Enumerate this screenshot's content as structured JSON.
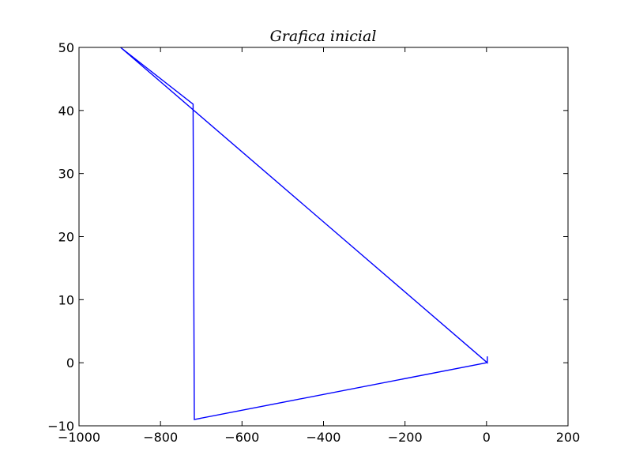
{
  "chart_data": {
    "type": "line",
    "title": "Grafica inicial",
    "xlabel": "",
    "ylabel": "",
    "xlim": [
      -1000,
      200
    ],
    "ylim": [
      -10,
      50
    ],
    "x_ticks": [
      -1000,
      -800,
      -600,
      -400,
      -200,
      0,
      200
    ],
    "x_tick_labels": [
      "−1000",
      "−800",
      "−600",
      "−400",
      "−200",
      "0",
      "200"
    ],
    "y_ticks": [
      -10,
      0,
      10,
      20,
      30,
      40,
      50
    ],
    "y_tick_labels": [
      "−10",
      "0",
      "10",
      "20",
      "30",
      "40",
      "50"
    ],
    "grid": false,
    "series": [
      {
        "color": "#0000ff",
        "x": [
          2,
          2,
          -898,
          -720,
          -720,
          -717,
          0
        ],
        "y": [
          1,
          0,
          50,
          41,
          40,
          -9,
          0
        ]
      }
    ]
  }
}
